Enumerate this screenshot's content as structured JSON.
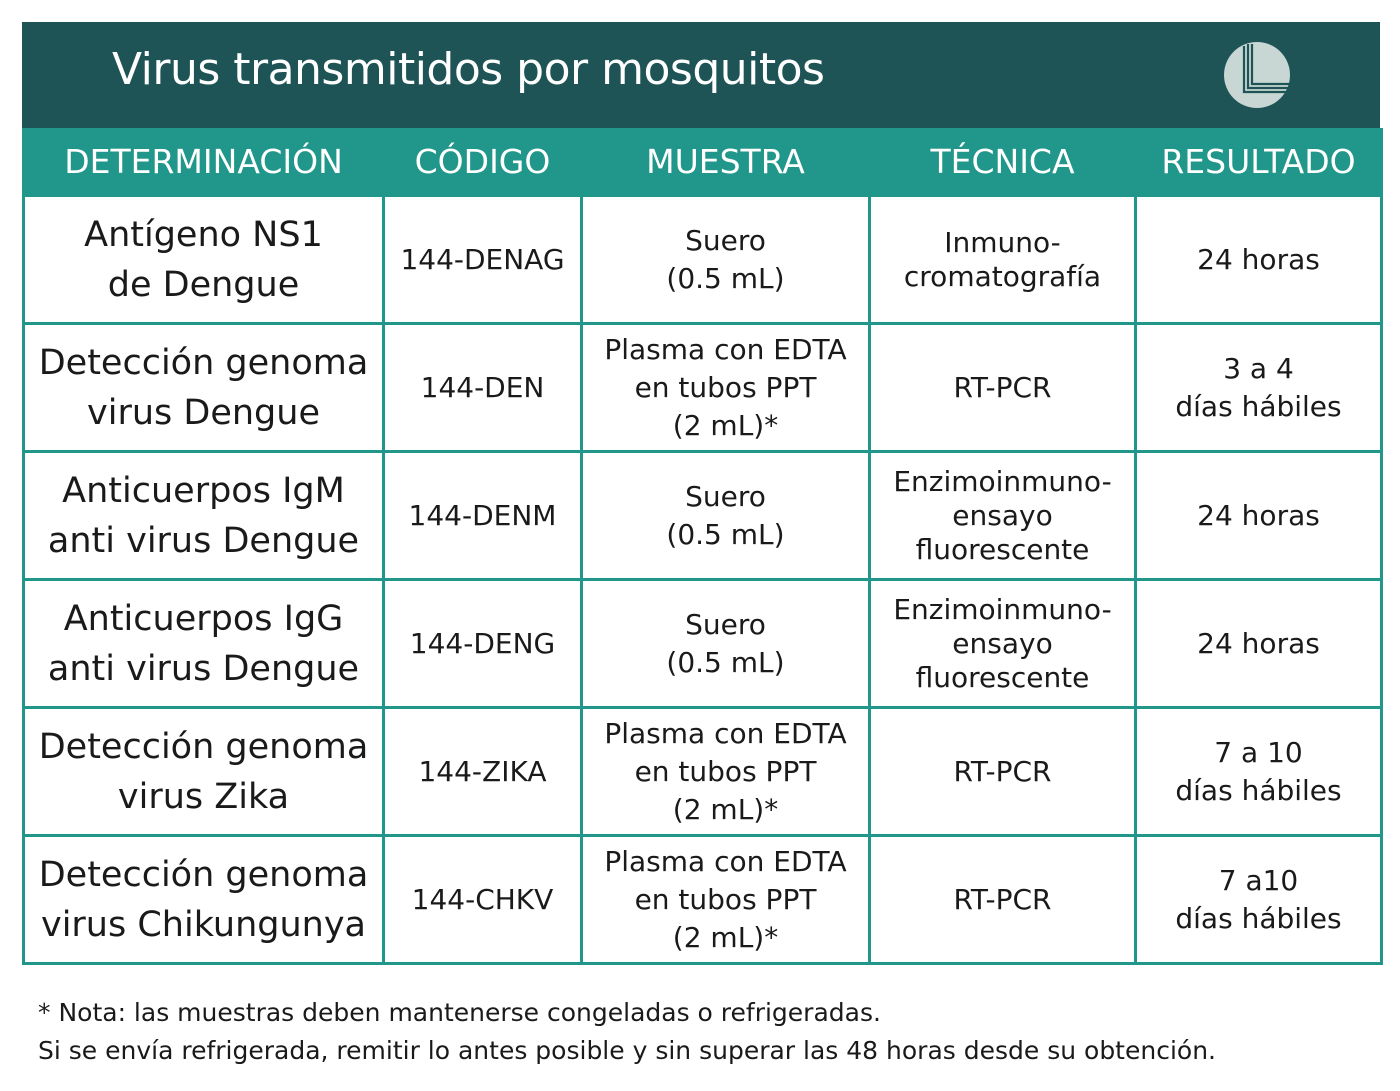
{
  "title": "Virus transmitidos por mosquitos",
  "colors": {
    "title_band": "#1e5456",
    "header": "#21968a",
    "logo": "#c8d6d4"
  },
  "logo_icon": "lab-logo-circle-L",
  "headers": [
    "DETERMINACIÓN",
    "CÓDIGO",
    "MUESTRA",
    "TÉCNICA",
    "RESULTADO"
  ],
  "rows": [
    {
      "det": [
        "Antígeno NS1",
        "de Dengue"
      ],
      "code": "144-DENAG",
      "sample": [
        "Suero",
        "(0.5 mL)"
      ],
      "tech": [
        "Inmuno-",
        "cromatografía"
      ],
      "result": [
        "24 horas"
      ]
    },
    {
      "det": [
        "Detección genoma",
        "virus Dengue"
      ],
      "code": "144-DEN",
      "sample": [
        "Plasma con EDTA",
        "en tubos PPT",
        "(2 mL)*"
      ],
      "tech": [
        "RT-PCR"
      ],
      "result": [
        "3 a 4",
        "días hábiles"
      ]
    },
    {
      "det": [
        "Anticuerpos IgM",
        "anti virus Dengue"
      ],
      "code": "144-DENM",
      "sample": [
        "Suero",
        "(0.5 mL)"
      ],
      "tech": [
        "Enzimoinmuno-",
        "ensayo",
        "fluorescente"
      ],
      "result": [
        "24 horas"
      ]
    },
    {
      "det": [
        "Anticuerpos IgG",
        "anti virus Dengue"
      ],
      "code": "144-DENG",
      "sample": [
        "Suero",
        "(0.5 mL)"
      ],
      "tech": [
        "Enzimoinmuno-",
        "ensayo",
        "fluorescente"
      ],
      "result": [
        "24 horas"
      ]
    },
    {
      "det": [
        "Detección genoma",
        "virus Zika"
      ],
      "code": "144-ZIKA",
      "sample": [
        "Plasma con EDTA",
        "en tubos PPT",
        "(2 mL)*"
      ],
      "tech": [
        "RT-PCR"
      ],
      "result": [
        "7 a 10",
        "días hábiles"
      ]
    },
    {
      "det": [
        "Detección genoma",
        "virus Chikungunya"
      ],
      "code": "144-CHKV",
      "sample": [
        "Plasma con EDTA",
        "en tubos PPT",
        "(2 mL)*"
      ],
      "tech": [
        "RT-PCR"
      ],
      "result": [
        "7 a10",
        "días hábiles"
      ]
    }
  ],
  "notes": [
    "* Nota: las muestras deben mantenerse congeladas o refrigeradas.",
    "Si se envía refrigerada, remitir lo antes posible y sin superar las 48 horas desde su obtención."
  ]
}
